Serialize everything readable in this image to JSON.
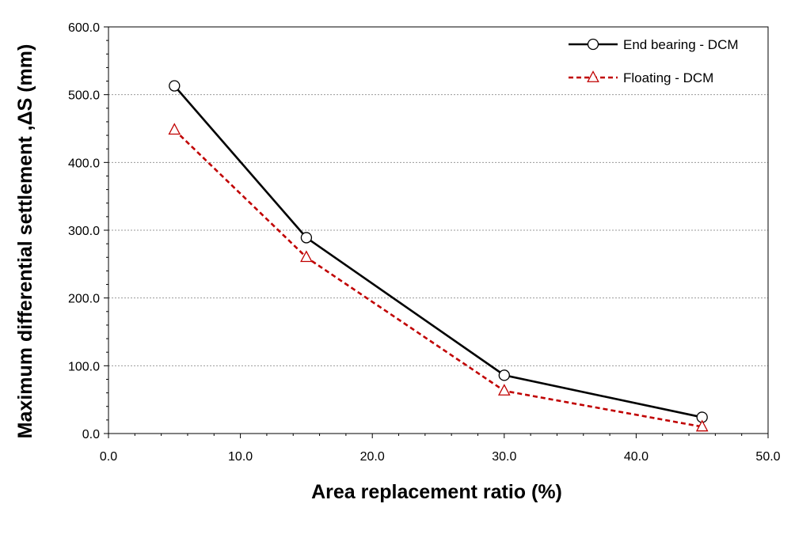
{
  "chart_data": {
    "type": "line",
    "xlabel": "Area replacement ratio (%)",
    "ylabel": "Maximum differential settlement ,ΔS (mm)",
    "xlim": [
      0,
      50
    ],
    "ylim": [
      0,
      600
    ],
    "x_ticks": [
      "0.0",
      "10.0",
      "20.0",
      "30.0",
      "40.0",
      "50.0"
    ],
    "y_ticks": [
      "0.0",
      "100.0",
      "200.0",
      "300.0",
      "400.0",
      "500.0",
      "600.0"
    ],
    "grid": "horizontal dotted",
    "legend_position": "top-right",
    "series": [
      {
        "name": "End bearing - DCM",
        "x": [
          5,
          15,
          30,
          45
        ],
        "y": [
          513,
          289,
          86,
          24
        ],
        "color": "#000000",
        "marker": "circle",
        "line": "solid"
      },
      {
        "name": "Floating - DCM",
        "x": [
          5,
          15,
          30,
          45
        ],
        "y": [
          448,
          260,
          63,
          10
        ],
        "color": "#c00000",
        "marker": "triangle",
        "line": "dashed"
      }
    ]
  }
}
